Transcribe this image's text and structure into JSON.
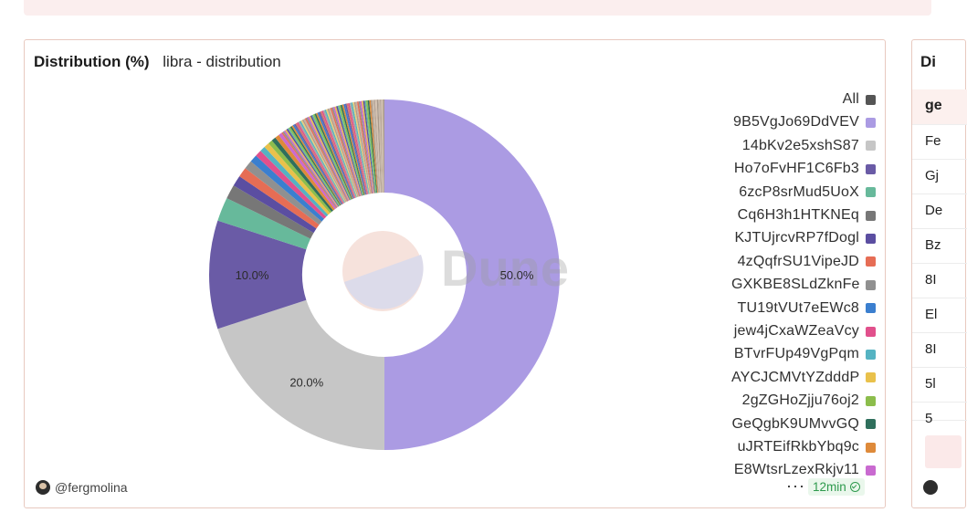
{
  "card": {
    "title": "Distribution (%)",
    "subtitle": "libra - distribution",
    "author": "@fergmolina",
    "more_label": "···",
    "refresh_label": "12min",
    "watermark": "Dune"
  },
  "side_card": {
    "title": "Di",
    "header": "ge",
    "rows": [
      "Fe",
      "Gj",
      "De",
      "Bz",
      "8I",
      "El",
      "8I",
      "5l",
      "5"
    ]
  },
  "chart_data": {
    "type": "pie",
    "donut": true,
    "title": "Distribution (%)",
    "subtitle": "libra - distribution",
    "legend_position": "right",
    "slices": [
      {
        "label": "All",
        "value": 0,
        "color": "#555555"
      },
      {
        "label": "9B5VgJo69DdVEV",
        "value": 50.0,
        "color": "#ab9be3",
        "data_label": "50.0%"
      },
      {
        "label": "14bKv2e5xshS87",
        "value": 20.0,
        "color": "#c6c6c6",
        "data_label": "20.0%"
      },
      {
        "label": "Ho7oFvHF1C6Fb3",
        "value": 10.0,
        "color": "#6a5ba6",
        "data_label": "10.0%"
      },
      {
        "label": "6zcP8srMud5UoX",
        "value": 2.2,
        "color": "#67b99b"
      },
      {
        "label": "Cq6H3h1HTKNEq",
        "value": 1.3,
        "color": "#777777"
      },
      {
        "label": "KJTUjrcvRP7fDogl",
        "value": 1.0,
        "color": "#5b4ea1"
      },
      {
        "label": "4zQqfrSU1VipeJD",
        "value": 0.9,
        "color": "#e66d55"
      },
      {
        "label": "GXKBE8SLdZknFe",
        "value": 0.8,
        "color": "#909090"
      },
      {
        "label": "TU19tVUt7eEWc8",
        "value": 0.7,
        "color": "#3b7fcf"
      },
      {
        "label": "jew4jCxaWZeaVcy",
        "value": 0.6,
        "color": "#e1508c"
      },
      {
        "label": "BTvrFUp49VgPqm",
        "value": 0.5,
        "color": "#55b3c2"
      },
      {
        "label": "AYCJCMVtYZdddP",
        "value": 0.5,
        "color": "#e9c14b"
      },
      {
        "label": "2gZGHoZjju76oj2",
        "value": 0.4,
        "color": "#8cbd4c"
      },
      {
        "label": "GeQgbK9UMvvGQ",
        "value": 0.4,
        "color": "#2f6f5c"
      },
      {
        "label": "uJRTEifRkbYbq9c",
        "value": 0.4,
        "color": "#de8a3a"
      },
      {
        "label": "E8WtsrLzexRkjv11",
        "value": 0.3,
        "color": "#c96ad0"
      }
    ],
    "other_small_slices_total": 9.0
  }
}
